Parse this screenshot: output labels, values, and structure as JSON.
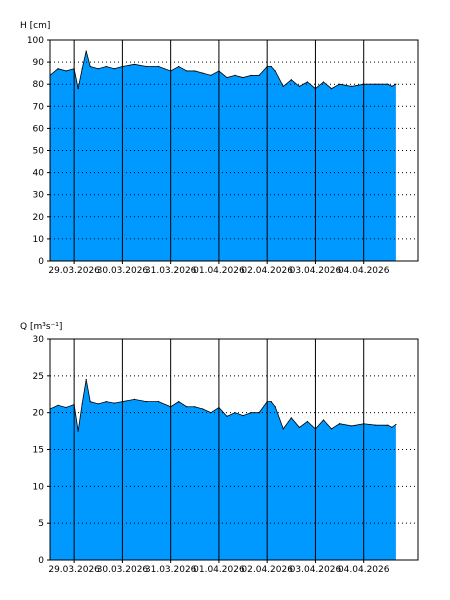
{
  "chart_data": [
    {
      "type": "area",
      "ylabel": "H [cm]",
      "ylim": [
        0,
        100
      ],
      "yticks": [
        0,
        10,
        20,
        30,
        40,
        50,
        60,
        70,
        80,
        90,
        100
      ],
      "x_range": [
        "2026-03-28T12:00",
        "2026-04-05T03:00"
      ],
      "x_tick_labels": [
        "29.03.2026",
        "30.03.2026",
        "31.03.2026",
        "01.04.2026",
        "02.04.2026",
        "03.04.2026",
        "04.04.2026"
      ],
      "fill_color": "#0099ff",
      "grid": true,
      "x": [
        "2026-03-28T12:00",
        "2026-03-28T16:00",
        "2026-03-28T20:00",
        "2026-03-29T00:00",
        "2026-03-29T02:00",
        "2026-03-29T04:00",
        "2026-03-29T06:00",
        "2026-03-29T08:00",
        "2026-03-29T12:00",
        "2026-03-29T16:00",
        "2026-03-29T20:00",
        "2026-03-30T00:00",
        "2026-03-30T06:00",
        "2026-03-30T12:00",
        "2026-03-30T18:00",
        "2026-03-31T00:00",
        "2026-03-31T04:00",
        "2026-03-31T08:00",
        "2026-03-31T12:00",
        "2026-03-31T16:00",
        "2026-03-31T20:00",
        "2026-04-01T00:00",
        "2026-04-01T04:00",
        "2026-04-01T08:00",
        "2026-04-01T12:00",
        "2026-04-01T16:00",
        "2026-04-01T20:00",
        "2026-04-02T00:00",
        "2026-04-02T02:00",
        "2026-04-02T04:00",
        "2026-04-02T08:00",
        "2026-04-02T12:00",
        "2026-04-02T16:00",
        "2026-04-02T20:00",
        "2026-04-03T00:00",
        "2026-04-03T04:00",
        "2026-04-03T08:00",
        "2026-04-03T12:00",
        "2026-04-03T18:00",
        "2026-04-04T00:00",
        "2026-04-04T06:00",
        "2026-04-04T12:00",
        "2026-04-04T14:00",
        "2026-04-04T16:00"
      ],
      "values": [
        84,
        87,
        86,
        87,
        78,
        87,
        95,
        88,
        87,
        88,
        87,
        88,
        89,
        88,
        88,
        86,
        88,
        86,
        86,
        85,
        84,
        86,
        83,
        84,
        83,
        84,
        84,
        88,
        88,
        86,
        79,
        82,
        79,
        81,
        78,
        81,
        78,
        80,
        79,
        80,
        80,
        80,
        79,
        80
      ]
    },
    {
      "type": "area",
      "ylabel": "Q [m³s⁻¹]",
      "ylim": [
        0,
        30
      ],
      "yticks": [
        0,
        5,
        10,
        15,
        20,
        25,
        30
      ],
      "x_range": [
        "2026-03-28T12:00",
        "2026-04-05T03:00"
      ],
      "x_tick_labels": [
        "29.03.2026",
        "30.03.2026",
        "31.03.2026",
        "01.04.2026",
        "02.04.2026",
        "03.04.2026",
        "04.04.2026"
      ],
      "fill_color": "#0099ff",
      "grid": true,
      "x": [
        "2026-03-28T12:00",
        "2026-03-28T16:00",
        "2026-03-28T20:00",
        "2026-03-29T00:00",
        "2026-03-29T02:00",
        "2026-03-29T04:00",
        "2026-03-29T06:00",
        "2026-03-29T08:00",
        "2026-03-29T12:00",
        "2026-03-29T16:00",
        "2026-03-29T20:00",
        "2026-03-30T00:00",
        "2026-03-30T06:00",
        "2026-03-30T12:00",
        "2026-03-30T18:00",
        "2026-03-31T00:00",
        "2026-03-31T04:00",
        "2026-03-31T08:00",
        "2026-03-31T12:00",
        "2026-03-31T16:00",
        "2026-03-31T20:00",
        "2026-04-01T00:00",
        "2026-04-01T04:00",
        "2026-04-01T08:00",
        "2026-04-01T12:00",
        "2026-04-01T16:00",
        "2026-04-01T20:00",
        "2026-04-02T00:00",
        "2026-04-02T02:00",
        "2026-04-02T04:00",
        "2026-04-02T08:00",
        "2026-04-02T12:00",
        "2026-04-02T16:00",
        "2026-04-02T20:00",
        "2026-04-03T00:00",
        "2026-04-03T04:00",
        "2026-04-03T08:00",
        "2026-04-03T12:00",
        "2026-04-03T18:00",
        "2026-04-04T00:00",
        "2026-04-04T06:00",
        "2026-04-04T12:00",
        "2026-04-04T14:00",
        "2026-04-04T16:00"
      ],
      "values": [
        20.5,
        21.0,
        20.7,
        21.1,
        17.5,
        21.2,
        24.5,
        21.5,
        21.2,
        21.5,
        21.3,
        21.5,
        21.8,
        21.5,
        21.5,
        20.8,
        21.5,
        20.8,
        20.8,
        20.5,
        20.0,
        20.7,
        19.5,
        20.0,
        19.6,
        20.0,
        20.0,
        21.5,
        21.5,
        20.8,
        17.8,
        19.3,
        18.0,
        18.8,
        17.8,
        19.0,
        17.8,
        18.5,
        18.2,
        18.5,
        18.3,
        18.3,
        18.0,
        18.4
      ]
    }
  ]
}
